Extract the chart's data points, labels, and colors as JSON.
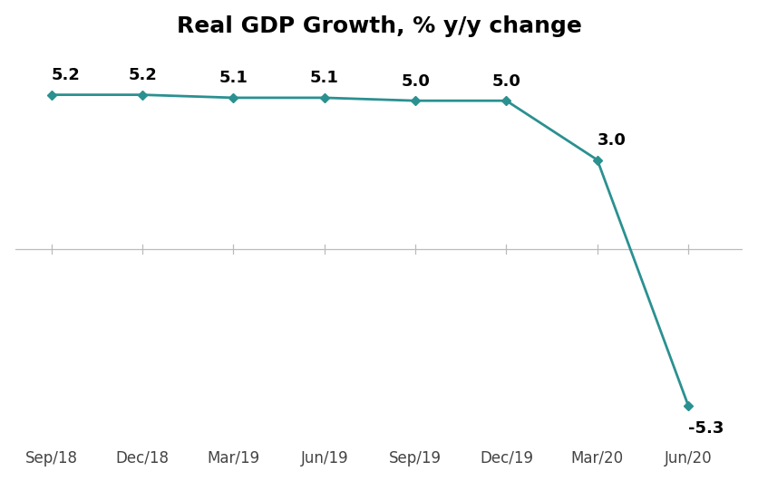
{
  "title": "Real GDP Growth, % y/y change",
  "x_labels": [
    "Sep/18",
    "Dec/18",
    "Mar/19",
    "Jun/19",
    "Sep/19",
    "Dec/19",
    "Mar/20",
    "Jun/20"
  ],
  "x_values": [
    0,
    1,
    2,
    3,
    4,
    5,
    6,
    7
  ],
  "y_values": [
    5.2,
    5.2,
    5.1,
    5.1,
    5.0,
    5.0,
    3.0,
    -5.3
  ],
  "data_labels": [
    "5.2",
    "5.2",
    "5.1",
    "5.1",
    "5.0",
    "5.0",
    "3.0",
    "-5.3"
  ],
  "label_offsets_y": [
    0.38,
    0.38,
    0.38,
    0.38,
    0.38,
    0.38,
    0.38,
    -0.5
  ],
  "label_ha": [
    "left",
    "center",
    "center",
    "center",
    "center",
    "center",
    "left",
    "left"
  ],
  "label_va": [
    "bottom",
    "bottom",
    "bottom",
    "bottom",
    "bottom",
    "bottom",
    "bottom",
    "top"
  ],
  "line_color": "#2b9090",
  "marker_color": "#2b9090",
  "background_color": "#ffffff",
  "title_fontsize": 18,
  "label_fontsize": 13,
  "tick_fontsize": 12,
  "ylim": [
    -6.5,
    6.8
  ],
  "xlim": [
    -0.4,
    7.6
  ]
}
